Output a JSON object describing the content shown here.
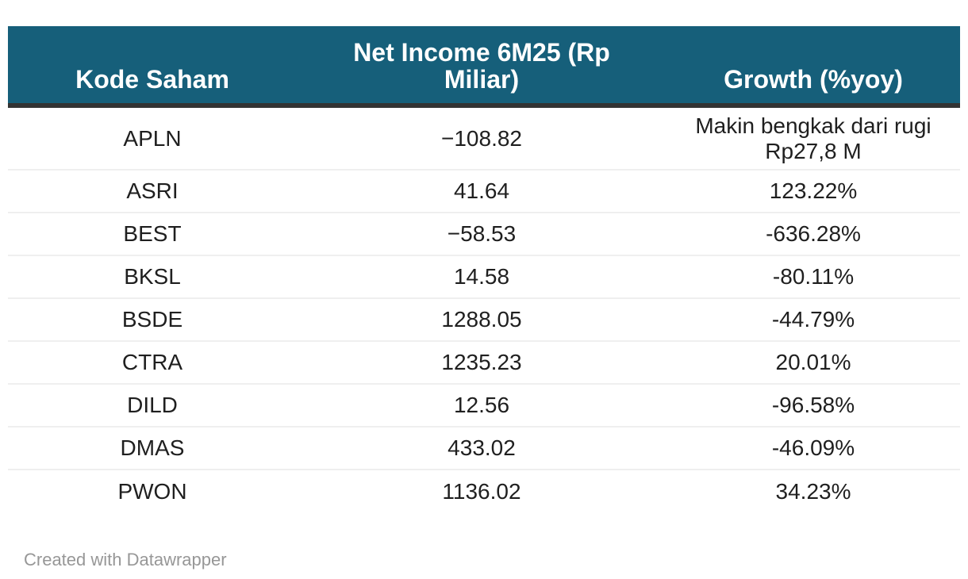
{
  "chart_data": {
    "type": "table",
    "columns": [
      "Kode Saham",
      "Net Income 6M25 (Rp Miliar)",
      "Growth (%yoy)"
    ],
    "rows": [
      {
        "kode": "APLN",
        "net_income": "−108.82",
        "growth": "Makin bengkak dari rugi Rp27,8 M"
      },
      {
        "kode": "ASRI",
        "net_income": "41.64",
        "growth": "123.22%"
      },
      {
        "kode": "BEST",
        "net_income": "−58.53",
        "growth": "-636.28%"
      },
      {
        "kode": "BKSL",
        "net_income": "14.58",
        "growth": "-80.11%"
      },
      {
        "kode": "BSDE",
        "net_income": "1288.05",
        "growth": "-44.79%"
      },
      {
        "kode": "CTRA",
        "net_income": "1235.23",
        "growth": "20.01%"
      },
      {
        "kode": "DILD",
        "net_income": "12.56",
        "growth": "-96.58%"
      },
      {
        "kode": "DMAS",
        "net_income": "433.02",
        "growth": "-46.09%"
      },
      {
        "kode": "PWON",
        "net_income": "1136.02",
        "growth": "34.23%"
      }
    ]
  },
  "footer": {
    "credit": "Created with Datawrapper"
  },
  "colors": {
    "header_bg": "#165f7a",
    "header_text": "#ffffff",
    "header_border": "#333333",
    "row_divider": "#efefef",
    "body_text": "#1f1f1f",
    "footer_text": "#979797"
  }
}
